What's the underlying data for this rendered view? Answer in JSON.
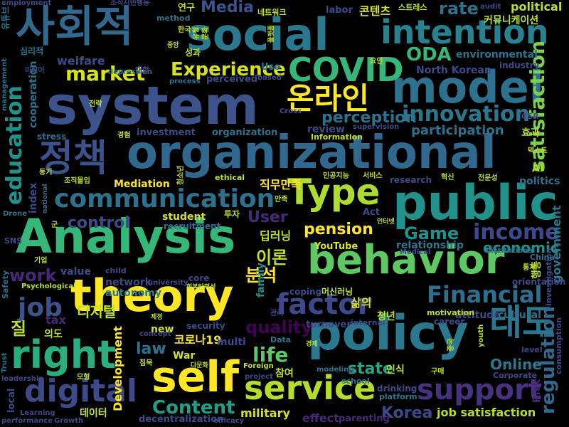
{
  "words": [
    {
      "text": "system",
      "color": "#3b528b"
    },
    {
      "text": "organizational",
      "color": "#31688e"
    },
    {
      "text": "social",
      "color": "#2a788e"
    },
    {
      "text": "theory",
      "color": "#fde725"
    },
    {
      "text": "policy",
      "color": "#2a788e"
    },
    {
      "text": "Analysis",
      "color": "#35b779"
    },
    {
      "text": "public",
      "color": "#21918c"
    },
    {
      "text": "behavior",
      "color": "#5ec962"
    },
    {
      "text": "model",
      "color": "#2c728e"
    },
    {
      "text": "right",
      "color": "#29af7f"
    },
    {
      "text": "self",
      "color": "#fde725"
    },
    {
      "text": "사회적",
      "color": "#31688e"
    },
    {
      "text": "intention",
      "color": "#26828e"
    },
    {
      "text": "service",
      "color": "#b5de2b"
    },
    {
      "text": "Type",
      "color": "#addc30"
    },
    {
      "text": "digital",
      "color": "#3e4989"
    },
    {
      "text": "communication",
      "color": "#2c728e"
    },
    {
      "text": "정책",
      "color": "#3b528b"
    },
    {
      "text": "support",
      "color": "#46327e"
    },
    {
      "text": "Financial",
      "color": "#2e6f8e"
    },
    {
      "text": "factor",
      "color": "#3e4989"
    },
    {
      "text": "COVID",
      "color": "#35b779"
    },
    {
      "text": "온라인",
      "color": "#fde725"
    },
    {
      "text": "태도",
      "color": "#2a788e"
    },
    {
      "text": "satisfaction",
      "color": "#7ad151"
    },
    {
      "text": "education",
      "color": "#21918c"
    },
    {
      "text": "innovation",
      "color": "#2a788e"
    },
    {
      "text": "regulation",
      "color": "#31688e"
    },
    {
      "text": "market",
      "color": "#d8e219"
    },
    {
      "text": "Experience",
      "color": "#d8e219"
    },
    {
      "text": "ODA",
      "color": "#35b779"
    },
    {
      "text": "income",
      "color": "#3e4989"
    },
    {
      "text": "Content",
      "color": "#1f9e89"
    },
    {
      "text": "job",
      "color": "#3b528b"
    },
    {
      "text": "work",
      "color": "#482878"
    },
    {
      "text": "law",
      "color": "#2c728e"
    },
    {
      "text": "life",
      "color": "#5ec962"
    },
    {
      "text": "state",
      "color": "#22a884"
    },
    {
      "text": "Game",
      "color": "#21918c"
    },
    {
      "text": "pension",
      "color": "#fde725"
    },
    {
      "text": "control",
      "color": "#3e4989"
    },
    {
      "text": "User",
      "color": "#482878"
    },
    {
      "text": "perception",
      "color": "#2c728e"
    },
    {
      "text": "participation",
      "color": "#2c728e"
    },
    {
      "text": "분석",
      "color": "#fde725"
    },
    {
      "text": "이론",
      "color": "#bddf26"
    },
    {
      "text": "Korea",
      "color": "#3e4989"
    },
    {
      "text": "quality",
      "color": "#440154"
    },
    {
      "text": "rate",
      "color": "#2c728e"
    },
    {
      "text": "Media",
      "color": "#3b528b"
    },
    {
      "text": "Online",
      "color": "#2a788e"
    },
    {
      "text": "economic",
      "color": "#21918c"
    },
    {
      "text": "government",
      "color": "#2a788e"
    },
    {
      "text": "environmental",
      "color": "#2c728e"
    },
    {
      "text": "North Korean",
      "color": "#3e4989"
    },
    {
      "text": "job satisfaction",
      "color": "#b5de2b"
    },
    {
      "text": "디지털",
      "color": "#bddf26"
    },
    {
      "text": "코로나19",
      "color": "#fde725"
    },
    {
      "text": "삶의",
      "color": "#d8e219"
    },
    {
      "text": "직무만족",
      "color": "#fde725"
    },
    {
      "text": "질",
      "color": "#bddf26"
    },
    {
      "text": "콘텐츠",
      "color": "#d8e219"
    },
    {
      "text": "커뮤니케이션",
      "color": "#bddf26"
    },
    {
      "text": "political",
      "color": "#bddf26"
    },
    {
      "text": "welfare",
      "color": "#3e4989"
    },
    {
      "text": "review",
      "color": "#3e4989"
    },
    {
      "text": "investment",
      "color": "#3e4989"
    },
    {
      "text": "organization",
      "color": "#2c728e"
    },
    {
      "text": "attitude",
      "color": "#3e4989"
    },
    {
      "text": "cultural",
      "color": "#2c728e"
    },
    {
      "text": "relationship",
      "color": "#2a788e"
    },
    {
      "text": "student",
      "color": "#d8e219"
    },
    {
      "text": "network",
      "color": "#3e4989"
    },
    {
      "text": "value",
      "color": "#3e4989"
    },
    {
      "text": "tax",
      "color": "#482878"
    },
    {
      "text": "index",
      "color": "#3e4989"
    },
    {
      "text": "Mediation",
      "color": "#fde725"
    },
    {
      "text": "Development",
      "color": "#fde725"
    },
    {
      "text": "autonomy",
      "color": "#2a788e"
    },
    {
      "text": "military",
      "color": "#d8e219"
    },
    {
      "text": "decentralization",
      "color": "#3e4989"
    },
    {
      "text": "effect",
      "color": "#482878"
    },
    {
      "text": "parenting",
      "color": "#482878"
    },
    {
      "text": "Risk",
      "color": "#482878"
    },
    {
      "text": "politics",
      "color": "#2c728e"
    },
    {
      "text": "AI",
      "color": "#b5de2b"
    },
    {
      "text": "multi",
      "color": "#3e4989"
    },
    {
      "text": "War",
      "color": "#d8e219"
    },
    {
      "text": "new",
      "color": "#d8e219"
    },
    {
      "text": "YouTube",
      "color": "#d8e219"
    },
    {
      "text": "research",
      "color": "#3e4989"
    },
    {
      "text": "stress",
      "color": "#2c728e"
    },
    {
      "text": "family",
      "color": "#21918c"
    },
    {
      "text": "Act",
      "color": "#3e4989"
    },
    {
      "text": "perceived",
      "color": "#3e4989"
    },
    {
      "text": "Use",
      "color": "#2c728e"
    },
    {
      "text": "labor",
      "color": "#3e4989"
    },
    {
      "text": "security",
      "color": "#3e4989"
    },
    {
      "text": "recruitment",
      "color": "#2c728e"
    },
    {
      "text": "core",
      "color": "#3e4989"
    },
    {
      "text": "school",
      "color": "#2c728e"
    },
    {
      "text": "drinking",
      "color": "#3e4989"
    },
    {
      "text": "platform",
      "color": "#2a788e"
    },
    {
      "text": "career",
      "color": "#3e4989"
    },
    {
      "text": "turnover",
      "color": "#3e4989"
    },
    {
      "text": "internal",
      "color": "#3e4989"
    },
    {
      "text": "coping",
      "color": "#3e4989"
    },
    {
      "text": "motivation",
      "color": "#bddf26"
    },
    {
      "text": "orientation",
      "color": "#3e4989"
    },
    {
      "text": "industry",
      "color": "#3e4989"
    },
    {
      "text": "method",
      "color": "#2c728e"
    },
    {
      "text": "ethical",
      "color": "#bddf26"
    },
    {
      "text": "Information",
      "color": "#bddf26"
    },
    {
      "text": "supervision",
      "color": "#3e4989"
    },
    {
      "text": "cooperation",
      "color": "#2c728e"
    },
    {
      "text": "management",
      "color": "#2c728e"
    },
    {
      "text": "employment",
      "color": "#3e4989"
    },
    {
      "text": "depression",
      "color": "#2c728e"
    },
    {
      "text": "process",
      "color": "#2c728e"
    },
    {
      "text": "based",
      "color": "#3e4989"
    },
    {
      "text": "audit",
      "color": "#3e4989"
    },
    {
      "text": "CSR",
      "color": "#3e4989"
    },
    {
      "text": "Cross",
      "color": "#3e4989"
    },
    {
      "text": "child",
      "color": "#3e4989"
    },
    {
      "text": "university",
      "color": "#3e4989"
    },
    {
      "text": "concept",
      "color": "#3e4989"
    },
    {
      "text": "Data",
      "color": "#2c728e"
    },
    {
      "text": "Foreign",
      "color": "#bddf26"
    },
    {
      "text": "project",
      "color": "#3e4989"
    },
    {
      "text": "modeling",
      "color": "#2c728e"
    },
    {
      "text": "Corporate",
      "color": "#3e4989"
    },
    {
      "text": "level",
      "color": "#3e4989"
    },
    {
      "text": "youth",
      "color": "#bddf26"
    },
    {
      "text": "consumption",
      "color": "#3e4989"
    },
    {
      "text": "investigation",
      "color": "#3e4989"
    },
    {
      "text": "China",
      "color": "#2c728e"
    },
    {
      "text": "Institutional",
      "color": "#2c728e"
    },
    {
      "text": "Medical",
      "color": "#3e4989"
    },
    {
      "text": "Psychological",
      "color": "#bddf26"
    },
    {
      "text": "Safety",
      "color": "#2c728e"
    },
    {
      "text": "Trust",
      "color": "#2c728e"
    },
    {
      "text": "leadership",
      "color": "#3e4989"
    },
    {
      "text": "local",
      "color": "#3e4989"
    },
    {
      "text": "Learning",
      "color": "#3e4989"
    },
    {
      "text": "performance",
      "color": "#3e4989"
    },
    {
      "text": "Growth",
      "color": "#3e4989"
    },
    {
      "text": "efficacy",
      "color": "#3e4989"
    },
    {
      "text": "SNS",
      "color": "#3e4989"
    },
    {
      "text": "Drone",
      "color": "#2c728e"
    },
    {
      "text": "national",
      "color": "#2c728e"
    },
    {
      "text": "유튜브",
      "color": "#2c728e"
    },
    {
      "text": "심리적",
      "color": "#2c728e"
    },
    {
      "text": "미디어",
      "color": "#3e4989"
    },
    {
      "text": "조직시민행동",
      "color": "#3e4989"
    },
    {
      "text": "연구",
      "color": "#bddf26"
    },
    {
      "text": "네트워크",
      "color": "#bddf26"
    },
    {
      "text": "스트레스",
      "color": "#bddf26"
    },
    {
      "text": "대한",
      "color": "#3e4989"
    },
    {
      "text": "성과",
      "color": "#bddf26"
    },
    {
      "text": "요인",
      "color": "#bddf26"
    },
    {
      "text": "경험",
      "color": "#bddf26"
    },
    {
      "text": "조직몰입",
      "color": "#bddf26"
    },
    {
      "text": "투자",
      "color": "#bddf26"
    },
    {
      "text": "딥러닝",
      "color": "#bddf26"
    },
    {
      "text": "인공지능",
      "color": "#bddf26"
    },
    {
      "text": "서비스",
      "color": "#bddf26"
    },
    {
      "text": "혁신",
      "color": "#bddf26"
    },
    {
      "text": "전문성",
      "color": "#bddf26"
    },
    {
      "text": "효과",
      "color": "#bddf26"
    },
    {
      "text": "텍스트",
      "color": "#bddf26"
    },
    {
      "text": "인식",
      "color": "#bddf26"
    },
    {
      "text": "청년",
      "color": "#bddf26"
    },
    {
      "text": "참여",
      "color": "#bddf26"
    },
    {
      "text": "머신러닝",
      "color": "#bddf26"
    },
    {
      "text": "의도",
      "color": "#bddf26"
    },
    {
      "text": "모형",
      "color": "#bddf26"
    },
    {
      "text": "데이터",
      "color": "#bddf26"
    },
    {
      "text": "관리",
      "color": "#3e4989"
    },
    {
      "text": "행동",
      "color": "#bddf26"
    },
    {
      "text": "구매",
      "color": "#bddf26"
    },
    {
      "text": "중국",
      "color": "#bddf26"
    },
    {
      "text": "군",
      "color": "#bddf26"
    },
    {
      "text": "기업",
      "color": "#bddf26"
    },
    {
      "text": "통제",
      "color": "#bddf26"
    },
    {
      "text": "전략",
      "color": "#bddf26"
    },
    {
      "text": "동기",
      "color": "#bddf26"
    },
    {
      "text": "만족",
      "color": "#bddf26"
    },
    {
      "text": "청소년",
      "color": "#bddf26"
    },
    {
      "text": "회복탄력성",
      "color": "#bddf26"
    },
    {
      "text": "침묵",
      "color": "#bddf26"
    },
    {
      "text": "인터넷",
      "color": "#bddf26"
    },
    {
      "text": "경제",
      "color": "#bddf26"
    },
    {
      "text": "한국",
      "color": "#bddf26"
    },
    {
      "text": "유형",
      "color": "#bddf26"
    },
    {
      "text": "문화",
      "color": "#bddf26"
    },
    {
      "text": "중앙",
      "color": "#bddf26"
    },
    {
      "text": "플랫폼",
      "color": "#bddf26"
    },
    {
      "text": "다문화",
      "color": "#bddf26"
    },
    {
      "text": "제정",
      "color": "#bddf26"
    }
  ]
}
